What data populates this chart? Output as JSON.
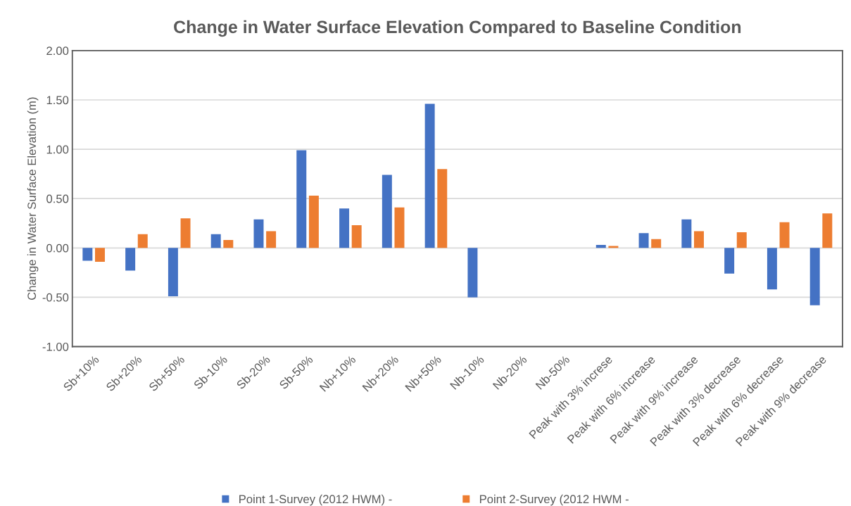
{
  "chart_data": {
    "type": "bar",
    "title": "Change in Water Surface Elevation Compared to Baseline Condition",
    "ylabel": "Change in Water Surface Elevation (m)",
    "categories": [
      "Sb+10%",
      "Sb+20%",
      "Sb+50%",
      "Sb-10%",
      "Sb-20%",
      "Sb-50%",
      "Nb+10%",
      "Nb+20%",
      "Nb+50%",
      "Nb-10%",
      "Nb-20%",
      "Nb-50%",
      "Peak with 3% increse",
      "Peak with 6% increase",
      "Peak with 9% increase",
      "Peak with 3% decrease",
      "Peak with 6% decrease",
      "Peak with 9% decrease"
    ],
    "series": [
      {
        "name": "Point 1-Survey (2012 HWM) -",
        "color": "#4472c4",
        "values": [
          -0.13,
          -0.23,
          -0.49,
          0.14,
          0.29,
          0.99,
          0.4,
          0.74,
          1.46,
          -0.5,
          null,
          null,
          0.03,
          0.15,
          0.29,
          -0.26,
          -0.42,
          -0.58
        ]
      },
      {
        "name": "Point 2-Survey (2012 HWM -",
        "color": "#ed7d31",
        "values": [
          -0.14,
          0.14,
          0.3,
          0.08,
          0.17,
          0.53,
          0.23,
          0.41,
          0.8,
          null,
          null,
          null,
          0.02,
          0.09,
          0.17,
          0.16,
          0.26,
          0.35
        ]
      }
    ],
    "ylim": [
      -1.0,
      2.0
    ],
    "yticks": [
      {
        "value": -1.0,
        "label": "-1.00"
      },
      {
        "value": -0.5,
        "label": "-0.50"
      },
      {
        "value": 0.0,
        "label": "0.00"
      },
      {
        "value": 0.5,
        "label": "0.50"
      },
      {
        "value": 1.0,
        "label": "1.00"
      },
      {
        "value": 1.5,
        "label": "1.50"
      },
      {
        "value": 2.0,
        "label": "2.00"
      }
    ],
    "grid": "y",
    "legend": "bottom"
  }
}
